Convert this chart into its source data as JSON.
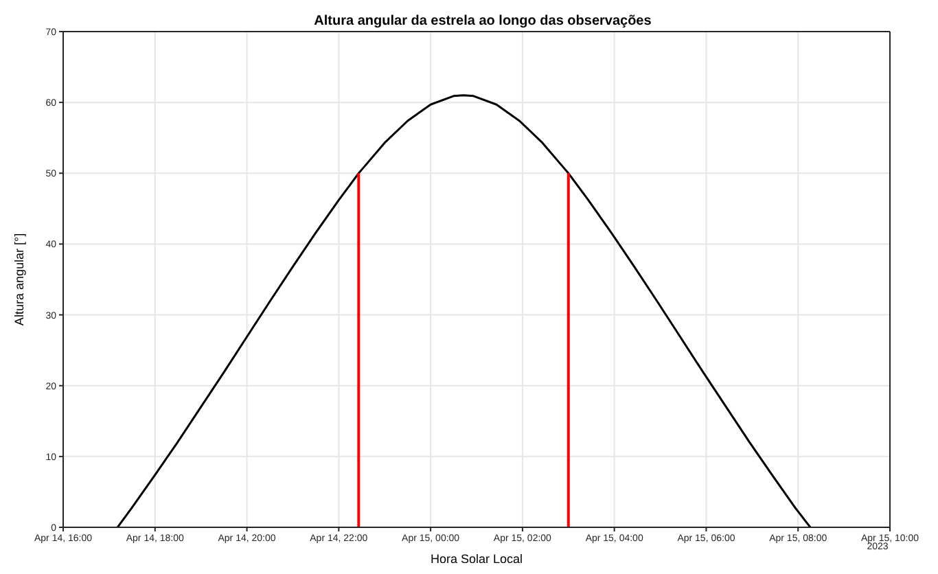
{
  "chart_data": {
    "type": "line",
    "title": "Altura angular da estrela ao longo das observações",
    "xlabel": "Hora Solar Local",
    "ylabel": "Altura angular [°]",
    "series": [
      {
        "color": "#000000",
        "x": [
          "2023-04-14T17:11",
          "2023-04-14T17:30",
          "2023-04-14T18:00",
          "2023-04-14T18:30",
          "2023-04-14T19:00",
          "2023-04-14T19:30",
          "2023-04-14T20:00",
          "2023-04-14T20:30",
          "2023-04-14T21:00",
          "2023-04-14T21:30",
          "2023-04-14T22:00",
          "2023-04-14T22:26",
          "2023-04-14T22:30",
          "2023-04-14T23:00",
          "2023-04-14T23:30",
          "2023-04-15T00:00",
          "2023-04-15T00:30",
          "2023-04-15T00:43",
          "2023-04-15T00:56",
          "2023-04-15T01:26",
          "2023-04-15T01:56",
          "2023-04-15T02:26",
          "2023-04-15T02:56",
          "2023-04-15T03:00",
          "2023-04-15T03:26",
          "2023-04-15T03:56",
          "2023-04-15T04:26",
          "2023-04-15T04:56",
          "2023-04-15T05:26",
          "2023-04-15T05:56",
          "2023-04-15T06:26",
          "2023-04-15T06:56",
          "2023-04-15T07:26",
          "2023-04-15T07:56",
          "2023-04-15T08:16"
        ],
        "values": [
          0,
          2.8,
          7.4,
          12.1,
          17.0,
          21.9,
          26.9,
          31.9,
          36.8,
          41.6,
          46.2,
          50,
          50.5,
          54.3,
          57.4,
          59.7,
          60.9,
          61,
          60.9,
          59.7,
          57.4,
          54.3,
          50.5,
          50,
          46.2,
          41.6,
          36.8,
          31.9,
          26.9,
          21.9,
          17.0,
          12.1,
          7.4,
          2.8,
          0
        ]
      },
      {
        "color": "#ff0000",
        "x": [
          "2023-04-14T22:26",
          "2023-04-14T22:26"
        ],
        "values": [
          0,
          50
        ]
      },
      {
        "color": "#ff0000",
        "x": [
          "2023-04-15T03:00",
          "2023-04-15T03:00"
        ],
        "values": [
          0,
          50
        ]
      }
    ],
    "xlim": [
      "2023-04-14T16:00",
      "2023-04-15T10:00"
    ],
    "xticks": [
      {
        "value": "2023-04-14T16:00",
        "label": "Apr 14, 16:00"
      },
      {
        "value": "2023-04-14T18:00",
        "label": "Apr 14, 18:00"
      },
      {
        "value": "2023-04-14T20:00",
        "label": "Apr 14, 20:00"
      },
      {
        "value": "2023-04-14T22:00",
        "label": "Apr 14, 22:00"
      },
      {
        "value": "2023-04-15T00:00",
        "label": "Apr 15, 00:00"
      },
      {
        "value": "2023-04-15T02:00",
        "label": "Apr 15, 02:00"
      },
      {
        "value": "2023-04-15T04:00",
        "label": "Apr 15, 04:00"
      },
      {
        "value": "2023-04-15T06:00",
        "label": "Apr 15, 06:00"
      },
      {
        "value": "2023-04-15T08:00",
        "label": "Apr 15, 08:00"
      },
      {
        "value": "2023-04-15T10:00",
        "label": "Apr 15, 10:00"
      }
    ],
    "ylim": [
      0,
      70
    ],
    "yticks": [
      0,
      10,
      20,
      30,
      40,
      50,
      60,
      70
    ],
    "annotations": [
      "2023"
    ],
    "grid": true,
    "marker": "none",
    "line_style": "solid"
  }
}
